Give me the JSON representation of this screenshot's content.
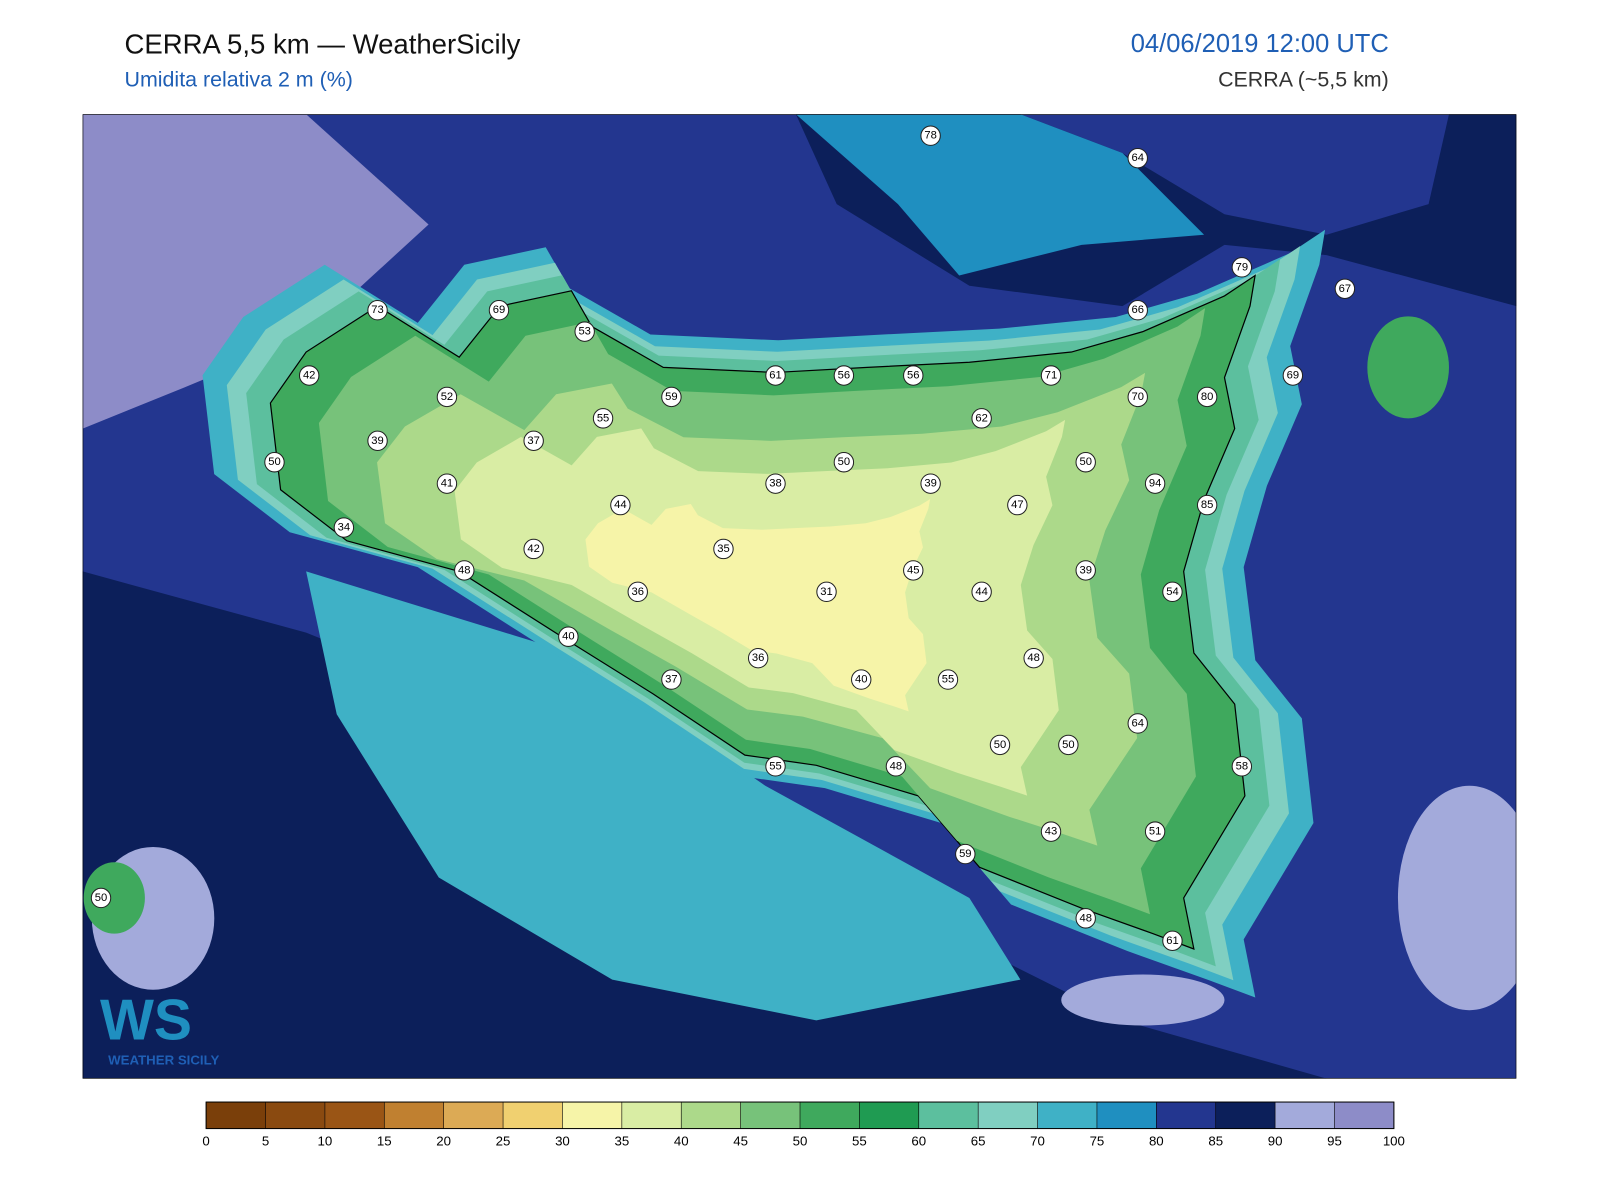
{
  "header": {
    "title": "CERRA 5,5 km — WeatherSicily",
    "subtitle": "Umidita relativa 2 m (%)",
    "datetime": "04/06/2019 12:00 UTC",
    "model": "CERRA (~5,5 km)"
  },
  "stations": [
    78,
    64,
    79,
    67,
    73,
    69,
    53,
    66,
    42,
    61,
    56,
    56,
    71,
    69,
    52,
    59,
    70,
    80,
    55,
    62,
    39,
    37,
    50,
    50,
    50,
    41,
    38,
    39,
    94,
    44,
    47,
    85,
    34,
    42,
    35,
    48,
    45,
    39,
    36,
    31,
    44,
    54,
    40,
    36,
    48,
    37,
    40,
    55,
    64,
    50,
    50,
    55,
    48,
    58,
    43,
    51,
    59,
    50,
    48,
    61
  ],
  "logo": {
    "mark": "WS",
    "name": "WEATHER SICILY"
  },
  "colorbar": {
    "ticks": [
      0,
      5,
      10,
      15,
      20,
      25,
      30,
      35,
      40,
      45,
      50,
      55,
      60,
      65,
      70,
      75,
      80,
      85,
      90,
      95,
      100
    ],
    "colors": [
      "#7a3f0a",
      "#8a4a10",
      "#9a5515",
      "#c08030",
      "#dcaa55",
      "#f0d070",
      "#f6f4a8",
      "#d9eda4",
      "#acd98a",
      "#77c27a",
      "#3fa95d",
      "#1f9b52",
      "#5cbf9e",
      "#80cfc1",
      "#3fb1c6",
      "#1f8fc0",
      "#23368f",
      "#0c1f5a",
      "#a3aadb",
      "#8d8cc8"
    ]
  }
}
